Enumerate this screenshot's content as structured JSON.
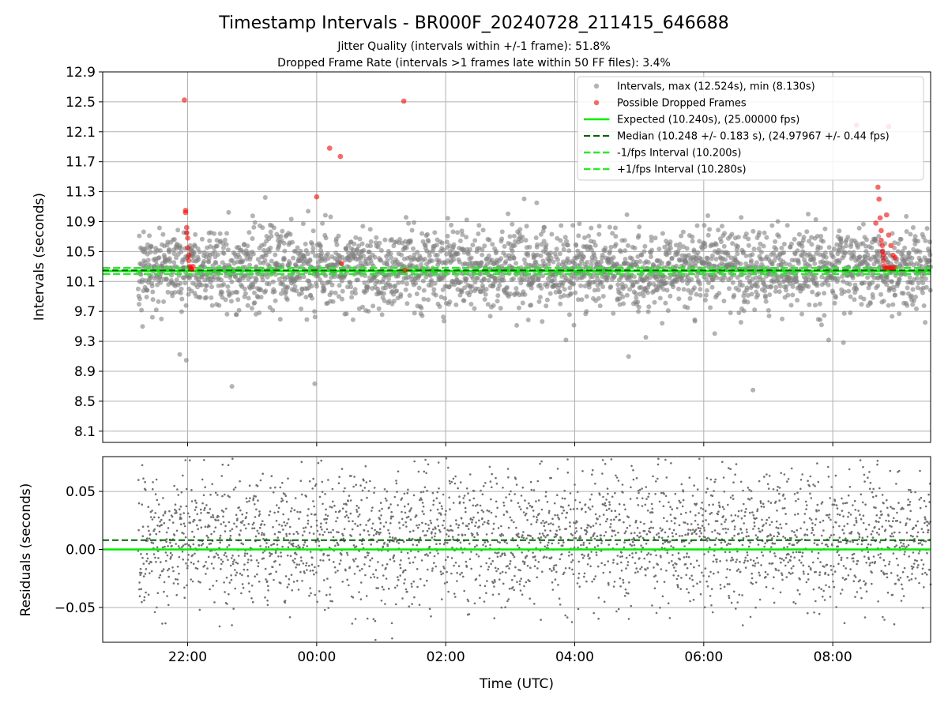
{
  "figure": {
    "title": "Timestamp Intervals - BR000F_20240728_211415_646688",
    "subtitle_1": "Jitter Quality (intervals within +/-1 frame): 51.8%",
    "subtitle_2": "Dropped Frame Rate (intervals >1 frames late within 50 FF files): 3.4%",
    "xlabel": "Time (UTC)"
  },
  "colors": {
    "intervals": "#808080",
    "dropped": "#ff0000",
    "expected": "#00ee00",
    "median": "#006400",
    "interval_bounds": "#22ee22",
    "grid": "#b0b0b0"
  },
  "chart_data": [
    {
      "type": "scatter",
      "panel": "intervals",
      "ylabel": "Intervals (seconds)",
      "ylim": [
        7.95,
        12.9
      ],
      "yticks": [
        8.1,
        8.5,
        8.9,
        9.3,
        9.7,
        10.1,
        10.5,
        10.9,
        11.3,
        11.7,
        12.1,
        12.5,
        12.9
      ],
      "ytick_labels": [
        "8.1",
        "8.5",
        "8.9",
        "9.3",
        "9.7",
        "10.1",
        "10.5",
        "10.9",
        "11.3",
        "11.7",
        "12.1",
        "12.5",
        "12.9"
      ],
      "xlim": [
        "2024-07-28T20:41",
        "2024-07-29T09:31"
      ],
      "xticks": [
        "2024-07-28T22:00",
        "2024-07-29T00:00",
        "2024-07-29T02:00",
        "2024-07-29T04:00",
        "2024-07-29T06:00",
        "2024-07-29T08:00"
      ],
      "grid": true,
      "legend_position": "upper right",
      "legend": [
        {
          "label": "Intervals, max (12.524s), min (8.130s)",
          "style": "marker-gray"
        },
        {
          "label": "Possible Dropped Frames",
          "style": "marker-red"
        },
        {
          "label": "Expected (10.240s), (25.00000 fps)",
          "style": "solid-green"
        },
        {
          "label": "Median (10.248 +/- 0.183 s), (24.97967 +/- 0.44 fps)",
          "style": "dashed-darkgreen"
        },
        {
          "label": "-1/fps Interval (10.200s)",
          "style": "dashed-green"
        },
        {
          "label": "+1/fps Interval (10.280s)",
          "style": "dashed-green"
        }
      ],
      "reference_lines": {
        "expected": 10.24,
        "median": 10.248,
        "minus_one_frame": 10.2,
        "plus_one_frame": 10.28
      },
      "observed_range": {
        "start": "2024-07-28T21:14",
        "end": "2024-07-29T09:31",
        "count": 2900
      },
      "stats": {
        "max": 12.524,
        "min": 8.13,
        "median": 10.248,
        "std": 0.183
      },
      "dropped_frames": [
        {
          "t": "2024-07-28T21:57",
          "y": 12.524
        },
        {
          "t": "2024-07-28T21:58",
          "y": 11.05
        },
        {
          "t": "2024-07-28T21:58",
          "y": 11.02
        },
        {
          "t": "2024-07-28T21:59",
          "y": 10.82
        },
        {
          "t": "2024-07-28T21:59",
          "y": 10.75
        },
        {
          "t": "2024-07-28T22:00",
          "y": 10.68
        },
        {
          "t": "2024-07-28T22:00",
          "y": 10.55
        },
        {
          "t": "2024-07-28T22:01",
          "y": 10.45
        },
        {
          "t": "2024-07-28T22:01",
          "y": 10.38
        },
        {
          "t": "2024-07-28T22:02",
          "y": 10.3
        },
        {
          "t": "2024-07-28T22:03",
          "y": 10.28
        },
        {
          "t": "2024-07-28T22:04",
          "y": 10.26
        },
        {
          "t": "2024-07-28T22:05",
          "y": 10.3
        },
        {
          "t": "2024-07-29T00:00",
          "y": 11.23
        },
        {
          "t": "2024-07-29T00:12",
          "y": 11.88
        },
        {
          "t": "2024-07-29T00:22",
          "y": 11.77
        },
        {
          "t": "2024-07-29T00:23",
          "y": 10.34
        },
        {
          "t": "2024-07-29T01:21",
          "y": 12.51
        },
        {
          "t": "2024-07-29T01:22",
          "y": 10.25
        },
        {
          "t": "2024-07-29T08:42",
          "y": 11.36
        },
        {
          "t": "2024-07-29T08:40",
          "y": 10.88
        },
        {
          "t": "2024-07-29T08:43",
          "y": 11.2
        },
        {
          "t": "2024-07-29T08:44",
          "y": 10.95
        },
        {
          "t": "2024-07-29T08:45",
          "y": 10.78
        },
        {
          "t": "2024-07-29T08:45",
          "y": 10.65
        },
        {
          "t": "2024-07-29T08:46",
          "y": 10.58
        },
        {
          "t": "2024-07-29T08:46",
          "y": 10.5
        },
        {
          "t": "2024-07-29T08:47",
          "y": 10.45
        },
        {
          "t": "2024-07-29T08:47",
          "y": 10.38
        },
        {
          "t": "2024-07-29T08:48",
          "y": 10.31
        },
        {
          "t": "2024-07-29T08:49",
          "y": 10.28
        },
        {
          "t": "2024-07-29T08:51",
          "y": 10.28
        },
        {
          "t": "2024-07-29T08:53",
          "y": 10.28
        },
        {
          "t": "2024-07-29T08:55",
          "y": 10.28
        },
        {
          "t": "2024-07-29T08:57",
          "y": 10.29
        },
        {
          "t": "2024-07-29T08:52",
          "y": 10.72
        },
        {
          "t": "2024-07-29T08:54",
          "y": 10.58
        },
        {
          "t": "2024-07-29T08:56",
          "y": 10.45
        },
        {
          "t": "2024-07-29T08:58",
          "y": 10.42
        },
        {
          "t": "2024-07-29T08:50",
          "y": 10.99
        },
        {
          "t": "2024-07-29T08:22",
          "y": 12.19
        },
        {
          "t": "2024-07-29T08:52",
          "y": 12.17
        }
      ]
    },
    {
      "type": "scatter",
      "panel": "residuals",
      "ylabel": "Residuals (seconds)",
      "ylim": [
        -0.08,
        0.08
      ],
      "yticks": [
        -0.05,
        0.0,
        0.05
      ],
      "ytick_labels": [
        "−0.05",
        "0.00",
        "0.05"
      ],
      "xlim": [
        "2024-07-28T20:41",
        "2024-07-29T09:31"
      ],
      "xticks": [
        "2024-07-28T22:00",
        "2024-07-29T00:00",
        "2024-07-29T02:00",
        "2024-07-29T04:00",
        "2024-07-29T06:00",
        "2024-07-29T08:00"
      ],
      "xtick_labels": [
        "22:00",
        "00:00",
        "02:00",
        "04:00",
        "06:00",
        "08:00"
      ],
      "grid": true,
      "reference_lines": {
        "zero": 0.0,
        "median_offset": 0.008
      },
      "observed_range": {
        "start": "2024-07-28T21:14",
        "end": "2024-07-29T09:31",
        "count": 2900
      }
    }
  ]
}
